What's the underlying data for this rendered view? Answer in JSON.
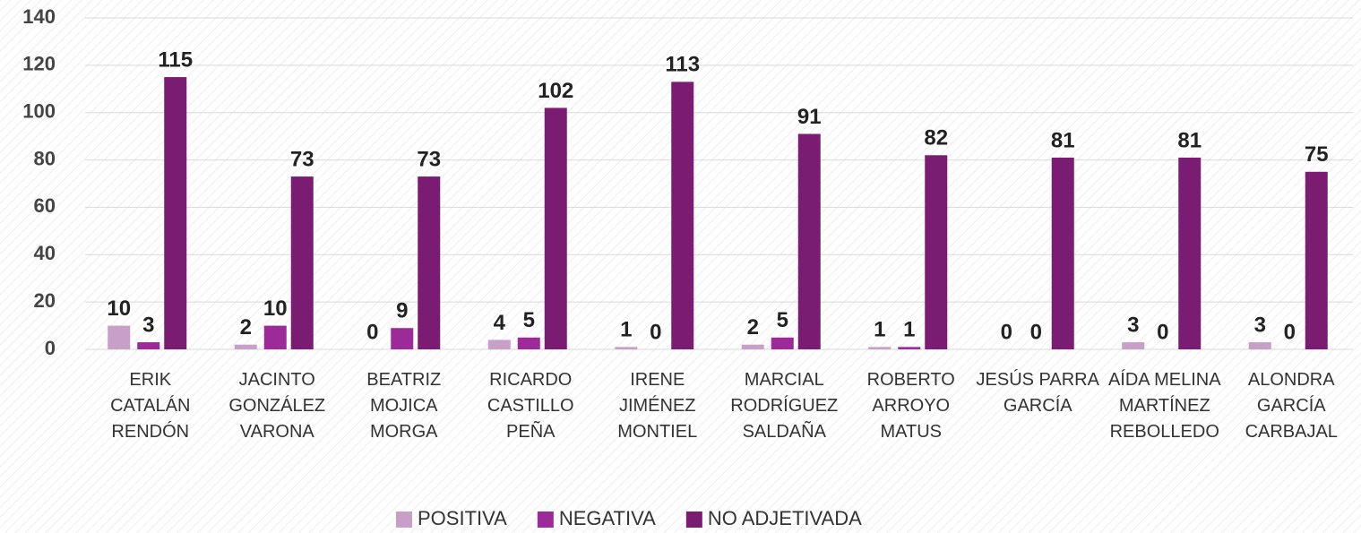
{
  "chart_data": {
    "type": "bar",
    "categories": [
      "ERIK CATALÁN RENDÓN",
      "JACINTO GONZÁLEZ VARONA",
      "BEATRIZ MOJICA MORGA",
      "RICARDO CASTILLO PEÑA",
      "IRENE JIMÉNEZ MONTIEL",
      "MARCIAL RODRÍGUEZ SALDAÑA",
      "ROBERTO ARROYO MATUS",
      "JESÚS PARRA GARCÍA",
      "AÍDA MELINA MARTÍNEZ REBOLLEDO",
      "ALONDRA GARCÍA CARBAJAL"
    ],
    "series": [
      {
        "name": "POSITIVA",
        "color": "#c79fc7",
        "values": [
          10,
          2,
          0,
          4,
          1,
          2,
          1,
          0,
          3,
          3
        ]
      },
      {
        "name": "NEGATIVA",
        "color": "#9c2a99",
        "values": [
          3,
          10,
          9,
          5,
          0,
          5,
          1,
          0,
          0,
          0
        ]
      },
      {
        "name": "NO ADJETIVADA",
        "color": "#7a1c72",
        "values": [
          115,
          73,
          73,
          102,
          113,
          91,
          82,
          81,
          81,
          75
        ]
      }
    ],
    "ylim": [
      0,
      140
    ],
    "yticks": [
      0,
      20,
      40,
      60,
      80,
      100,
      120,
      140
    ],
    "grid": true,
    "legend": "bottom"
  }
}
